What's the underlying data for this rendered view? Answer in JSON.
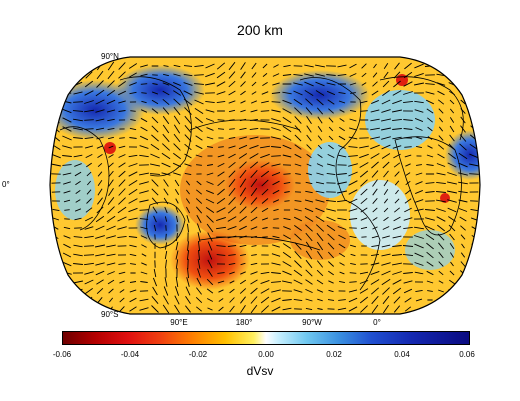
{
  "title": "200 km",
  "map": {
    "projection": "Robinson",
    "lat_labels": [
      "90°N",
      "0°",
      "90°S"
    ],
    "lon_labels": [
      "90°E",
      "180°",
      "90°W",
      "0°"
    ],
    "field": "dVsv",
    "arrows": "fast-axis anisotropy vectors"
  },
  "colorbar": {
    "label": "dVsv",
    "min": -0.06,
    "max": 0.06,
    "ticks": [
      "-0.06",
      "-0.04",
      "-0.02",
      "0.00",
      "0.02",
      "0.04",
      "0.06"
    ],
    "colors": {
      "negative": "#b40000",
      "neutral": "#ffffff",
      "positive": "#1428b0"
    }
  }
}
